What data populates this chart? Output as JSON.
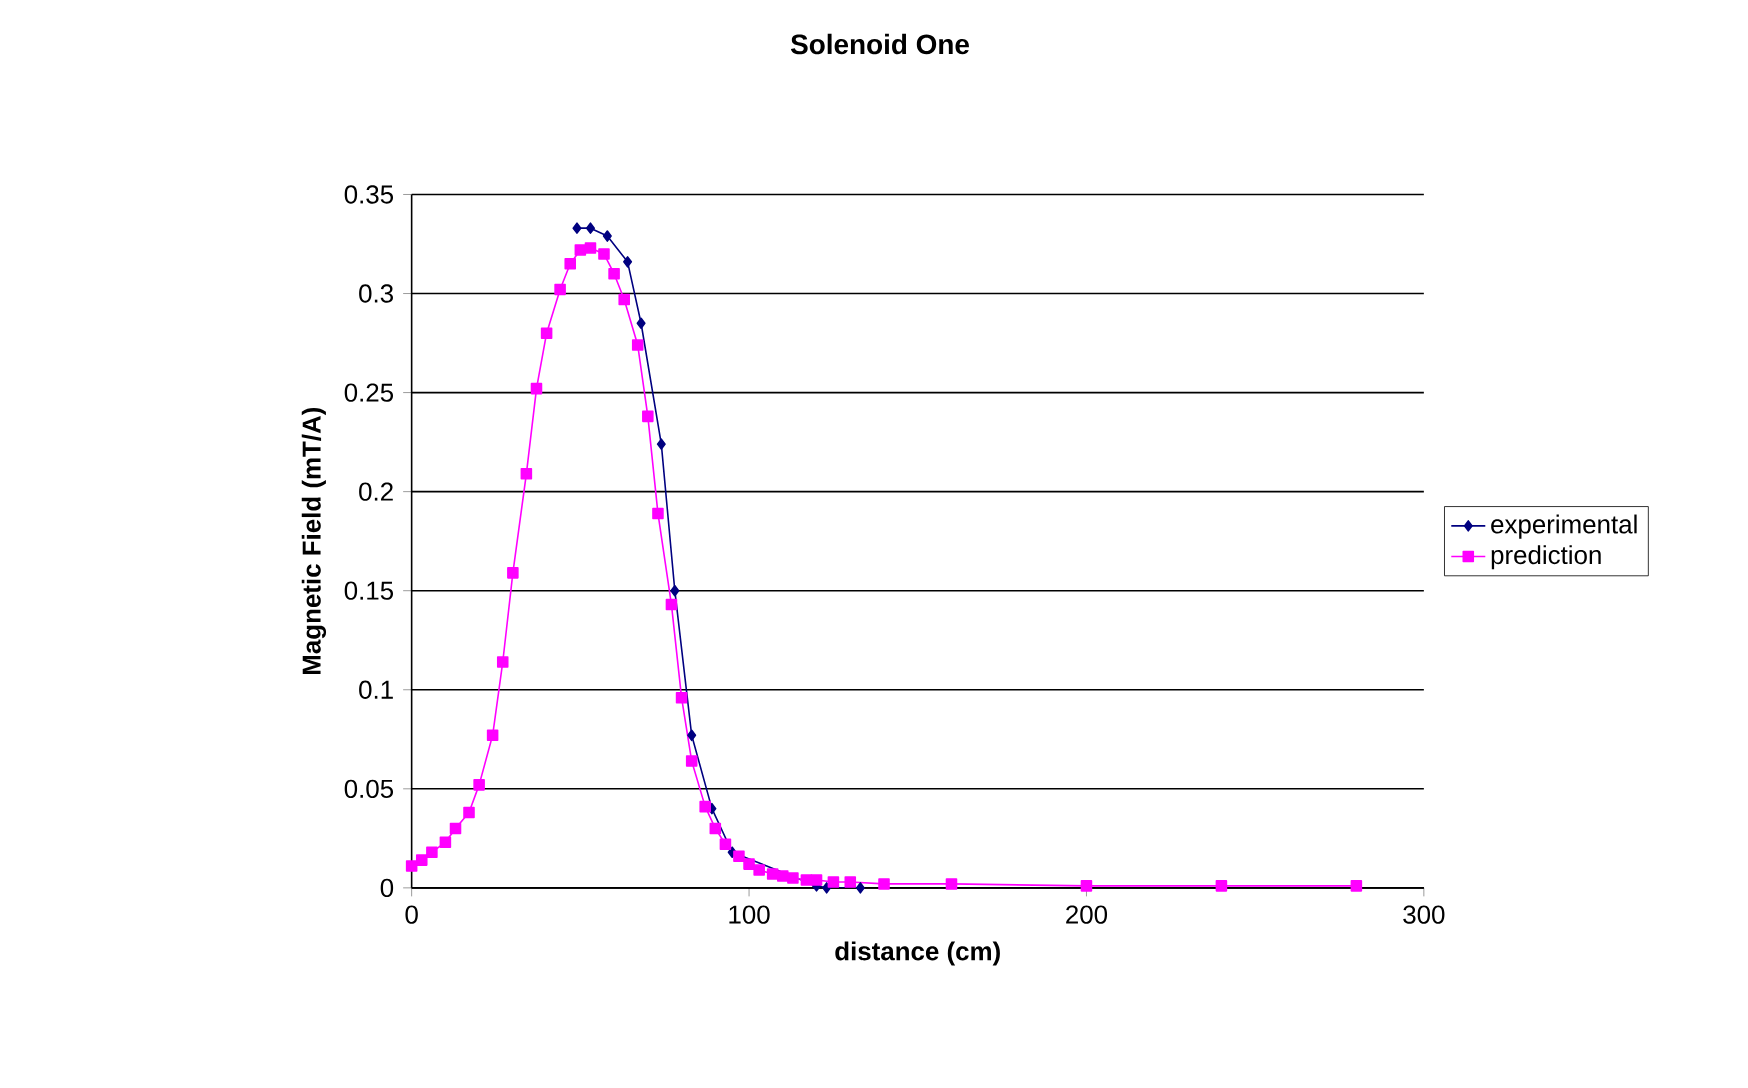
{
  "chart_data": {
    "type": "line",
    "title": "Solenoid One",
    "xlabel": "distance (cm)",
    "ylabel": "Magnetic Field (mT/A)",
    "xlim": [
      0,
      300
    ],
    "xticks": [
      0,
      100,
      200,
      300
    ],
    "ylim": [
      0,
      0.35
    ],
    "yticks": [
      0,
      0.05,
      0.1,
      0.15,
      0.2,
      0.25,
      0.3,
      0.35
    ],
    "grid": "y",
    "legend": "right",
    "series": [
      {
        "name": "experimental",
        "color": "#000080",
        "marker": "diamond",
        "x": [
          49,
          53,
          58,
          64,
          68,
          74,
          78,
          83,
          89,
          95,
          101,
          107,
          113,
          120,
          123,
          133
        ],
        "values": [
          0.333,
          0.333,
          0.329,
          0.316,
          0.285,
          0.224,
          0.15,
          0.077,
          0.04,
          0.018,
          null,
          null,
          null,
          0.001,
          0.0,
          0.0
        ]
      },
      {
        "name": "prediction",
        "color": "#ff00ff",
        "marker": "square",
        "x": [
          0,
          3,
          6,
          10,
          13,
          17,
          20,
          24,
          27,
          30,
          34,
          37,
          40,
          44,
          47,
          50,
          53,
          57,
          60,
          63,
          67,
          70,
          73,
          77,
          80,
          83,
          87,
          90,
          93,
          97,
          100,
          103,
          107,
          110,
          113,
          117,
          120,
          125,
          130,
          140,
          160,
          200,
          240,
          280
        ],
        "values": [
          0.011,
          0.014,
          0.018,
          0.023,
          0.03,
          0.038,
          0.052,
          0.077,
          0.114,
          0.159,
          0.209,
          0.252,
          0.28,
          0.302,
          0.315,
          0.322,
          0.323,
          0.32,
          0.31,
          0.297,
          0.274,
          0.238,
          0.189,
          0.143,
          0.096,
          0.064,
          0.041,
          0.03,
          0.022,
          0.016,
          0.012,
          0.009,
          0.007,
          0.006,
          0.005,
          0.004,
          0.004,
          0.003,
          0.003,
          0.002,
          0.002,
          0.001,
          0.001,
          0.001
        ]
      }
    ]
  }
}
